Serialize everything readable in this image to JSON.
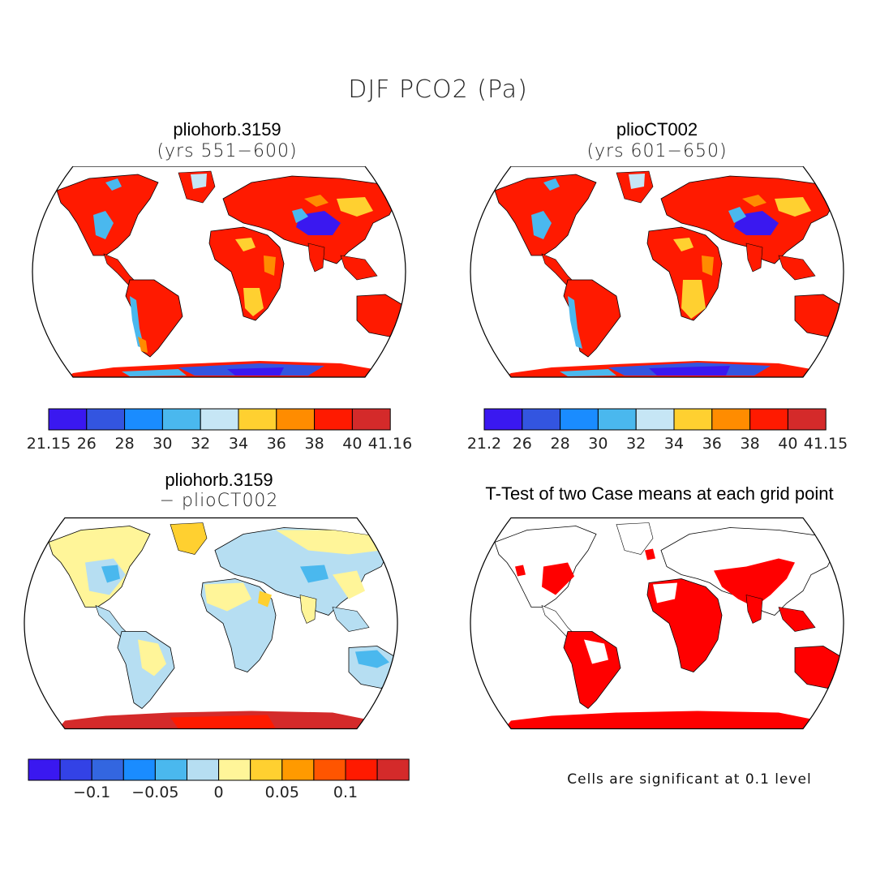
{
  "main_title": "DJF PCO2 (Pa)",
  "colors": {
    "c1": "#3a18f0",
    "c2": "#3355e0",
    "c3": "#1a8cff",
    "c4": "#4ab8ee",
    "c5": "#c6e6f5",
    "c6": "#ffd030",
    "c7": "#ff8c00",
    "c8": "#ff1a00",
    "c9": "#d42a2a",
    "pale_yellow": "#fff599",
    "light_blue": "#b6def2",
    "sig_red": "#ff0000"
  },
  "panels": {
    "top_left": {
      "title": "pliohorb.3159",
      "subtitle": "(yrs 551−600)",
      "colorbar_labels": [
        "21.15",
        "26",
        "28",
        "30",
        "32",
        "34",
        "36",
        "38",
        "40",
        "41.16"
      ]
    },
    "top_right": {
      "title": "plioCT002",
      "subtitle": "(yrs 601−650)",
      "colorbar_labels": [
        "21.2",
        "26",
        "28",
        "30",
        "32",
        "34",
        "36",
        "38",
        "40",
        "41.15"
      ]
    },
    "bottom_left": {
      "title": "pliohorb.3159",
      "subtitle": "− plioCT002",
      "colorbar_labels": [
        "−0.1",
        "−0.05",
        "0",
        "0.05",
        "0.1"
      ]
    },
    "bottom_right": {
      "title": "T-Test of two Case means at each grid point",
      "note": "Cells are significant at 0.1 level"
    }
  }
}
